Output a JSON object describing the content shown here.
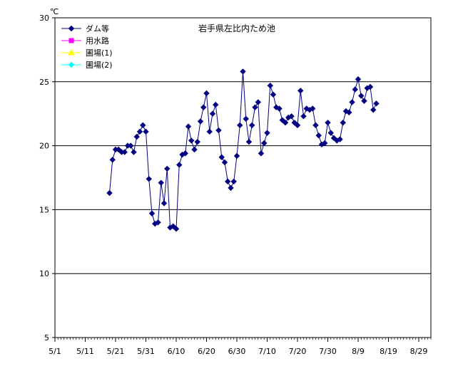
{
  "chart_data": {
    "type": "line",
    "title": "岩手県左比内ため池",
    "ylabel": "℃",
    "ylim": [
      5,
      30
    ],
    "yticks": [
      5,
      10,
      15,
      20,
      25,
      30
    ],
    "gridlines": [
      10,
      15,
      20,
      25
    ],
    "x_start": "5/1",
    "x_end": "9/2",
    "xticks": [
      "5/1",
      "5/11",
      "5/21",
      "5/31",
      "6/10",
      "6/20",
      "6/30",
      "7/10",
      "7/20",
      "7/30",
      "8/9",
      "8/19",
      "8/29"
    ],
    "legend_position": "top-left",
    "series": [
      {
        "name": "ダム等",
        "color": "#000080",
        "marker": "diamond",
        "points": [
          [
            "5/19",
            16.3
          ],
          [
            "5/20",
            18.9
          ],
          [
            "5/21",
            19.7
          ],
          [
            "5/22",
            19.7
          ],
          [
            "5/23",
            19.5
          ],
          [
            "5/24",
            19.5
          ],
          [
            "5/25",
            20.0
          ],
          [
            "5/26",
            20.0
          ],
          [
            "5/27",
            19.5
          ],
          [
            "5/28",
            20.7
          ],
          [
            "5/29",
            21.1
          ],
          [
            "5/30",
            21.6
          ],
          [
            "5/31",
            21.1
          ],
          [
            "6/1",
            17.4
          ],
          [
            "6/2",
            14.7
          ],
          [
            "6/3",
            13.9
          ],
          [
            "6/4",
            14.0
          ],
          [
            "6/5",
            17.1
          ],
          [
            "6/6",
            15.5
          ],
          [
            "6/7",
            18.2
          ],
          [
            "6/8",
            13.6
          ],
          [
            "6/9",
            13.7
          ],
          [
            "6/10",
            13.5
          ],
          [
            "6/11",
            18.5
          ],
          [
            "6/12",
            19.3
          ],
          [
            "6/13",
            19.4
          ],
          [
            "6/14",
            21.5
          ],
          [
            "6/15",
            20.4
          ],
          [
            "6/16",
            19.7
          ],
          [
            "6/17",
            20.3
          ],
          [
            "6/18",
            21.9
          ],
          [
            "6/19",
            23.0
          ],
          [
            "6/20",
            24.1
          ],
          [
            "6/21",
            21.1
          ],
          [
            "6/22",
            22.5
          ],
          [
            "6/23",
            23.2
          ],
          [
            "6/24",
            21.2
          ],
          [
            "6/25",
            19.1
          ],
          [
            "6/26",
            18.7
          ],
          [
            "6/27",
            17.2
          ],
          [
            "6/28",
            16.7
          ],
          [
            "6/29",
            17.2
          ],
          [
            "6/30",
            19.2
          ],
          [
            "7/1",
            21.6
          ],
          [
            "7/2",
            25.8
          ],
          [
            "7/3",
            22.1
          ],
          [
            "7/4",
            20.3
          ],
          [
            "7/5",
            21.6
          ],
          [
            "7/6",
            23.0
          ],
          [
            "7/7",
            23.4
          ],
          [
            "7/8",
            19.4
          ],
          [
            "7/9",
            20.2
          ],
          [
            "7/10",
            21.0
          ],
          [
            "7/11",
            24.7
          ],
          [
            "7/12",
            24.0
          ],
          [
            "7/13",
            23.0
          ],
          [
            "7/14",
            22.9
          ],
          [
            "7/15",
            22.0
          ],
          [
            "7/16",
            21.8
          ],
          [
            "7/17",
            22.2
          ],
          [
            "7/18",
            22.3
          ],
          [
            "7/19",
            21.8
          ],
          [
            "7/20",
            21.6
          ],
          [
            "7/21",
            24.3
          ],
          [
            "7/22",
            22.3
          ],
          [
            "7/23",
            22.9
          ],
          [
            "7/24",
            22.8
          ],
          [
            "7/25",
            22.9
          ],
          [
            "7/26",
            21.6
          ],
          [
            "7/27",
            20.8
          ],
          [
            "7/28",
            20.1
          ],
          [
            "7/29",
            20.2
          ],
          [
            "7/30",
            21.8
          ],
          [
            "7/31",
            21.0
          ],
          [
            "8/1",
            20.6
          ],
          [
            "8/2",
            20.4
          ],
          [
            "8/3",
            20.5
          ],
          [
            "8/4",
            21.8
          ],
          [
            "8/5",
            22.7
          ],
          [
            "8/6",
            22.6
          ],
          [
            "8/7",
            23.4
          ],
          [
            "8/8",
            24.4
          ],
          [
            "8/9",
            25.2
          ],
          [
            "8/10",
            23.9
          ],
          [
            "8/11",
            23.5
          ],
          [
            "8/12",
            24.5
          ],
          [
            "8/13",
            24.6
          ],
          [
            "8/14",
            22.8
          ],
          [
            "8/15",
            23.3
          ]
        ]
      },
      {
        "name": "用水路",
        "color": "#ff00ff",
        "marker": "square",
        "points": []
      },
      {
        "name": "圃場(1)",
        "color": "#ffff00",
        "marker": "triangle",
        "points": []
      },
      {
        "name": "圃場(2)",
        "color": "#00ffff",
        "marker": "diamond",
        "points": []
      }
    ]
  }
}
